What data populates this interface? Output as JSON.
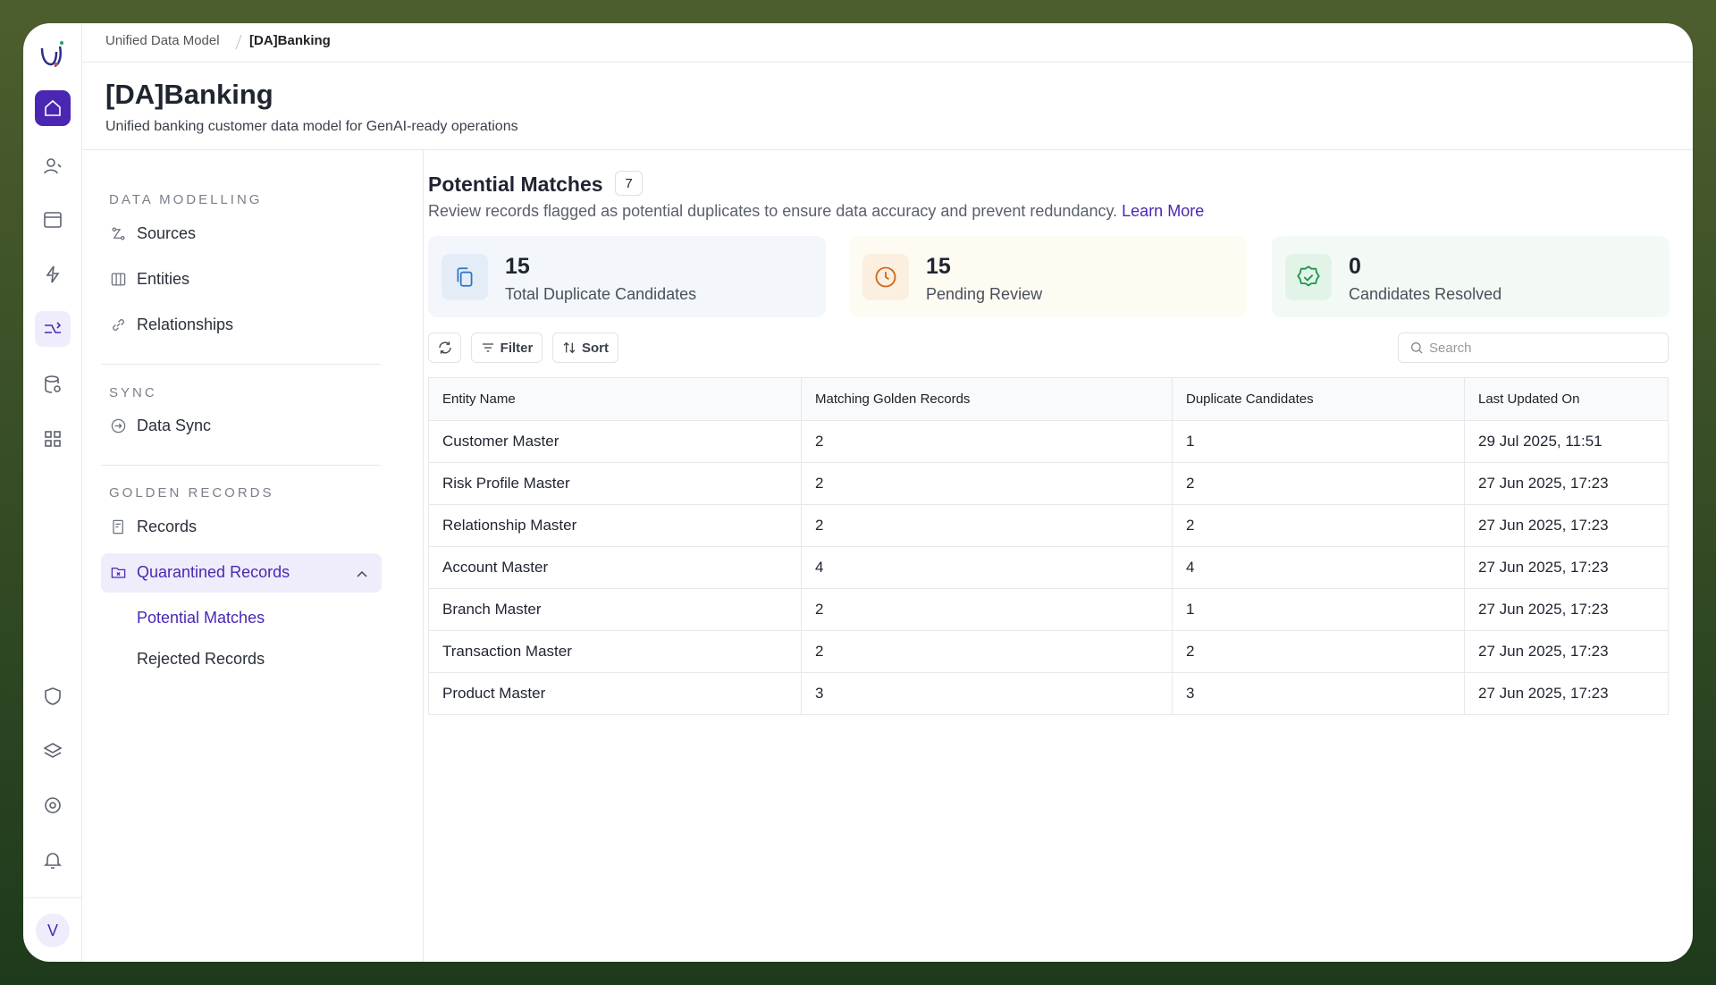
{
  "breadcrumb": [
    "Unified Data Model",
    "[DA]Banking"
  ],
  "header": {
    "title": "[DA]Banking",
    "subtitle": "Unified banking customer data model for GenAI-ready operations"
  },
  "nav": {
    "sections": [
      {
        "title": "DATA MODELLING",
        "items": [
          "Sources",
          "Entities",
          "Relationships"
        ]
      },
      {
        "title": "SYNC",
        "items": [
          "Data Sync"
        ]
      },
      {
        "title": "GOLDEN RECORDS",
        "items": [
          "Records",
          "Quarantined Records"
        ]
      }
    ],
    "subitems": [
      "Potential Matches",
      "Rejected Records"
    ]
  },
  "main": {
    "title": "Potential Matches",
    "count": 7,
    "description": "Review records flagged as potential duplicates to ensure data accuracy and prevent redundancy.",
    "link": "Learn More",
    "stats": [
      {
        "value": 15,
        "label": "Total Duplicate Candidates"
      },
      {
        "value": 15,
        "label": "Pending Review"
      },
      {
        "value": 0,
        "label": "Candidates Resolved"
      }
    ],
    "toolbar": [
      "Filter",
      "Sort"
    ],
    "search_placeholder": "Search"
  },
  "table": {
    "headers": [
      "Entity Name",
      "Matching Golden Records",
      "Duplicate Candidates",
      "Last Updated On"
    ],
    "rows": [
      [
        "Customer Master",
        2,
        1,
        "29 Jul 2025, 11:51"
      ],
      [
        "Risk Profile Master",
        2,
        2,
        "27 Jun 2025, 17:23"
      ],
      [
        "Relationship Master",
        2,
        2,
        "27 Jun 2025, 17:23"
      ],
      [
        "Account Master",
        4,
        4,
        "27 Jun 2025, 17:23"
      ],
      [
        "Branch Master",
        2,
        1,
        "27 Jun 2025, 17:23"
      ],
      [
        "Transaction Master",
        2,
        2,
        "27 Jun 2025, 17:23"
      ],
      [
        "Product Master",
        3,
        3,
        "27 Jun 2025, 17:23"
      ]
    ]
  },
  "user": {
    "initial": "V"
  }
}
